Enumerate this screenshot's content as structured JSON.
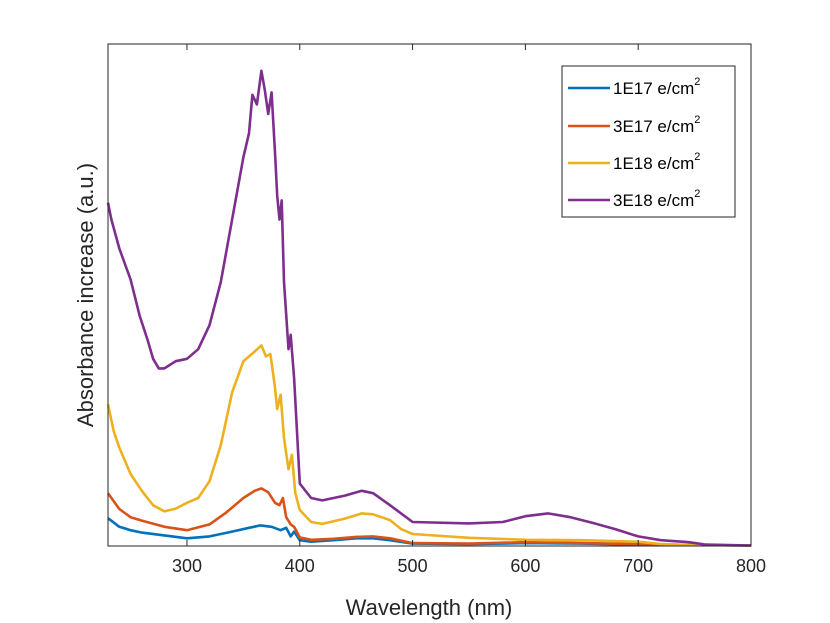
{
  "chart_data": {
    "type": "line",
    "xlabel": "Wavelength (nm)",
    "ylabel": "Absorbance increase (a.u.)",
    "xlim": [
      230,
      800
    ],
    "ylim": [
      0,
      1
    ],
    "x_ticks": [
      "300",
      "400",
      "500",
      "600",
      "700",
      "800"
    ],
    "x_tick_values": [
      300,
      400,
      500,
      600,
      700,
      800
    ],
    "y_ticks": [],
    "grid": false,
    "legend_position": "top-right",
    "series": [
      {
        "name_main": "1E17 e/cm",
        "name_sup": "2",
        "color": "#0072BD",
        "points": [
          [
            230,
            0.058
          ],
          [
            240,
            0.04
          ],
          [
            250,
            0.033
          ],
          [
            260,
            0.028
          ],
          [
            280,
            0.022
          ],
          [
            300,
            0.016
          ],
          [
            320,
            0.02
          ],
          [
            340,
            0.03
          ],
          [
            355,
            0.038
          ],
          [
            365,
            0.043
          ],
          [
            375,
            0.04
          ],
          [
            383,
            0.033
          ],
          [
            388,
            0.038
          ],
          [
            392,
            0.02
          ],
          [
            395,
            0.03
          ],
          [
            400,
            0.012
          ],
          [
            410,
            0.009
          ],
          [
            430,
            0.012
          ],
          [
            450,
            0.016
          ],
          [
            465,
            0.016
          ],
          [
            480,
            0.012
          ],
          [
            500,
            0.005
          ],
          [
            550,
            0.004
          ],
          [
            600,
            0.006
          ],
          [
            650,
            0.005
          ],
          [
            700,
            0.003
          ],
          [
            750,
            0.002
          ],
          [
            800,
            0.001
          ]
        ]
      },
      {
        "name_main": "3E17 e/cm",
        "name_sup": "2",
        "color": "#D95319",
        "points": [
          [
            230,
            0.11
          ],
          [
            240,
            0.077
          ],
          [
            250,
            0.06
          ],
          [
            260,
            0.053
          ],
          [
            280,
            0.04
          ],
          [
            300,
            0.033
          ],
          [
            320,
            0.045
          ],
          [
            335,
            0.07
          ],
          [
            350,
            0.1
          ],
          [
            360,
            0.115
          ],
          [
            366,
            0.12
          ],
          [
            372,
            0.112
          ],
          [
            378,
            0.09
          ],
          [
            382,
            0.085
          ],
          [
            385,
            0.1
          ],
          [
            388,
            0.06
          ],
          [
            392,
            0.045
          ],
          [
            395,
            0.04
          ],
          [
            400,
            0.018
          ],
          [
            410,
            0.013
          ],
          [
            430,
            0.015
          ],
          [
            450,
            0.019
          ],
          [
            465,
            0.02
          ],
          [
            480,
            0.016
          ],
          [
            500,
            0.006
          ],
          [
            550,
            0.005
          ],
          [
            600,
            0.008
          ],
          [
            650,
            0.006
          ],
          [
            700,
            0.004
          ],
          [
            750,
            0.002
          ],
          [
            800,
            0.001
          ]
        ]
      },
      {
        "name_main": "1E18 e/cm",
        "name_sup": "2",
        "color": "#EDB120",
        "points": [
          [
            230,
            0.295
          ],
          [
            235,
            0.24
          ],
          [
            240,
            0.205
          ],
          [
            250,
            0.15
          ],
          [
            260,
            0.115
          ],
          [
            270,
            0.085
          ],
          [
            280,
            0.072
          ],
          [
            290,
            0.078
          ],
          [
            300,
            0.09
          ],
          [
            310,
            0.1
          ],
          [
            320,
            0.135
          ],
          [
            330,
            0.21
          ],
          [
            340,
            0.32
          ],
          [
            350,
            0.385
          ],
          [
            360,
            0.405
          ],
          [
            366,
            0.418
          ],
          [
            370,
            0.395
          ],
          [
            374,
            0.4
          ],
          [
            378,
            0.33
          ],
          [
            380,
            0.285
          ],
          [
            383,
            0.315
          ],
          [
            386,
            0.225
          ],
          [
            390,
            0.16
          ],
          [
            393,
            0.19
          ],
          [
            396,
            0.11
          ],
          [
            400,
            0.075
          ],
          [
            410,
            0.05
          ],
          [
            420,
            0.046
          ],
          [
            440,
            0.057
          ],
          [
            455,
            0.068
          ],
          [
            465,
            0.066
          ],
          [
            480,
            0.054
          ],
          [
            490,
            0.035
          ],
          [
            500,
            0.025
          ],
          [
            550,
            0.017
          ],
          [
            600,
            0.013
          ],
          [
            650,
            0.012
          ],
          [
            700,
            0.009
          ],
          [
            720,
            0.004
          ],
          [
            750,
            0.002
          ],
          [
            800,
            0.001
          ]
        ]
      },
      {
        "name_main": "3E18 e/cm",
        "name_sup": "2",
        "color": "#7E2F8E",
        "points": [
          [
            230,
            0.715
          ],
          [
            233,
            0.68
          ],
          [
            240,
            0.62
          ],
          [
            250,
            0.555
          ],
          [
            258,
            0.48
          ],
          [
            265,
            0.43
          ],
          [
            270,
            0.39
          ],
          [
            275,
            0.37
          ],
          [
            280,
            0.37
          ],
          [
            290,
            0.385
          ],
          [
            300,
            0.39
          ],
          [
            310,
            0.41
          ],
          [
            320,
            0.46
          ],
          [
            330,
            0.55
          ],
          [
            340,
            0.68
          ],
          [
            350,
            0.81
          ],
          [
            355,
            0.86
          ],
          [
            358,
            0.94
          ],
          [
            362,
            0.92
          ],
          [
            366,
            0.99
          ],
          [
            369,
            0.95
          ],
          [
            372,
            0.9
          ],
          [
            375,
            0.945
          ],
          [
            378,
            0.82
          ],
          [
            380,
            0.73
          ],
          [
            382,
            0.68
          ],
          [
            384,
            0.72
          ],
          [
            386,
            0.55
          ],
          [
            390,
            0.41
          ],
          [
            392,
            0.44
          ],
          [
            395,
            0.35
          ],
          [
            400,
            0.13
          ],
          [
            410,
            0.1
          ],
          [
            420,
            0.095
          ],
          [
            440,
            0.105
          ],
          [
            455,
            0.115
          ],
          [
            465,
            0.11
          ],
          [
            480,
            0.085
          ],
          [
            500,
            0.05
          ],
          [
            550,
            0.047
          ],
          [
            580,
            0.05
          ],
          [
            600,
            0.062
          ],
          [
            620,
            0.068
          ],
          [
            640,
            0.06
          ],
          [
            660,
            0.048
          ],
          [
            680,
            0.035
          ],
          [
            700,
            0.02
          ],
          [
            720,
            0.012
          ],
          [
            745,
            0.008
          ],
          [
            760,
            0.003
          ],
          [
            800,
            0.001
          ]
        ]
      }
    ]
  }
}
